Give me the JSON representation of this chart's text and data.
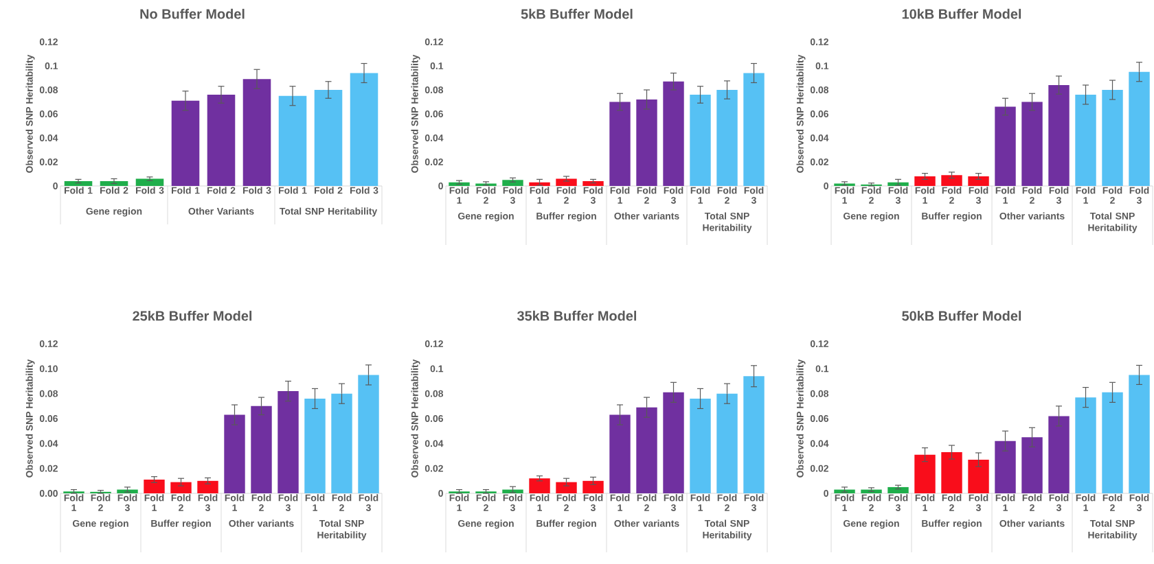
{
  "chart_data": [
    {
      "type": "bar",
      "title": "No Buffer Model",
      "ylabel": "Observed SNP Heritability",
      "categories": [
        "Fold 1",
        "Fold 2",
        "Fold 3",
        "Fold 1",
        "Fold 2",
        "Fold 3",
        "Fold 1",
        "Fold 2",
        "Fold 3"
      ],
      "ylim": [
        0,
        0.12
      ],
      "yticks": [
        0,
        0.02,
        0.04,
        0.06,
        0.08,
        0.1,
        0.12
      ],
      "series": [
        {
          "name": "Gene region",
          "color": "#1fae4b",
          "values": [
            0.004,
            0.004,
            0.006,
            null,
            null,
            null,
            null,
            null,
            null
          ],
          "errors": [
            0.0015,
            0.002,
            0.0015,
            null,
            null,
            null,
            null,
            null,
            null
          ]
        },
        {
          "name": "Other Variants",
          "color": "#7030a0",
          "values": [
            null,
            null,
            null,
            0.071,
            0.076,
            0.089,
            null,
            null,
            null
          ],
          "errors": [
            null,
            null,
            null,
            0.008,
            0.007,
            0.008,
            null,
            null,
            null
          ]
        },
        {
          "name": "Total SNP Heritability",
          "color": "#56c1f4",
          "values": [
            null,
            null,
            null,
            null,
            null,
            null,
            0.075,
            0.08,
            0.094
          ],
          "errors": [
            null,
            null,
            null,
            null,
            null,
            null,
            0.008,
            0.007,
            0.008
          ]
        }
      ]
    },
    {
      "type": "bar",
      "title": "5kB Buffer Model",
      "ylabel": "Observed SNP Heritability",
      "categories": [
        "Fold 1",
        "Fold 2",
        "Fold 3",
        "Fold 1",
        "Fold 2",
        "Fold 3",
        "Fold 1",
        "Fold 2",
        "Fold 3",
        "Fold 1",
        "Fold 2",
        "Fold 3"
      ],
      "ylim": [
        0,
        0.12
      ],
      "yticks": [
        0,
        0.02,
        0.04,
        0.06,
        0.08,
        0.1,
        0.12
      ],
      "series": [
        {
          "name": "Gene region",
          "color": "#1fae4b",
          "values": [
            0.003,
            0.002,
            0.005,
            null,
            null,
            null,
            null,
            null,
            null,
            null,
            null,
            null
          ],
          "errors": [
            0.0015,
            0.0015,
            0.0017,
            null,
            null,
            null,
            null,
            null,
            null,
            null,
            null,
            null
          ]
        },
        {
          "name": "Buffer region",
          "color": "#f90d1b",
          "values": [
            null,
            null,
            null,
            0.003,
            0.006,
            0.004,
            null,
            null,
            null,
            null,
            null,
            null
          ],
          "errors": [
            null,
            null,
            null,
            0.0025,
            0.002,
            0.0015,
            null,
            null,
            null,
            null,
            null,
            null
          ]
        },
        {
          "name": "Other variants",
          "color": "#7030a0",
          "values": [
            null,
            null,
            null,
            null,
            null,
            null,
            0.07,
            0.072,
            0.087,
            null,
            null,
            null
          ],
          "errors": [
            null,
            null,
            null,
            null,
            null,
            null,
            0.007,
            0.008,
            0.007,
            null,
            null,
            null
          ]
        },
        {
          "name": "Total SNP Heritability",
          "color": "#56c1f4",
          "values": [
            null,
            null,
            null,
            null,
            null,
            null,
            null,
            null,
            null,
            0.076,
            0.08,
            0.094
          ],
          "errors": [
            null,
            null,
            null,
            null,
            null,
            null,
            null,
            null,
            null,
            0.007,
            0.0075,
            0.008
          ]
        }
      ]
    },
    {
      "type": "bar",
      "title": "10kB Buffer Model",
      "ylabel": "Observed SNP Heritability",
      "categories": [
        "Fold 1",
        "Fold 2",
        "Fold 3",
        "Fold 1",
        "Fold 2",
        "Fold 3",
        "Fold 1",
        "Fold 2",
        "Fold 3",
        "Fold 1",
        "Fold 2",
        "Fold 3"
      ],
      "ylim": [
        0,
        0.12
      ],
      "yticks": [
        0,
        0.02,
        0.04,
        0.06,
        0.08,
        0.1,
        0.12
      ],
      "series": [
        {
          "name": "Gene region",
          "color": "#1fae4b",
          "values": [
            0.002,
            0.0012,
            0.003,
            null,
            null,
            null,
            null,
            null,
            null,
            null,
            null,
            null
          ],
          "errors": [
            0.0015,
            0.0012,
            0.0025,
            null,
            null,
            null,
            null,
            null,
            null,
            null,
            null,
            null
          ]
        },
        {
          "name": "Buffer region",
          "color": "#f90d1b",
          "values": [
            null,
            null,
            null,
            0.008,
            0.009,
            0.008,
            null,
            null,
            null,
            null,
            null,
            null
          ],
          "errors": [
            null,
            null,
            null,
            0.0025,
            0.0025,
            0.0025,
            null,
            null,
            null,
            null,
            null,
            null
          ]
        },
        {
          "name": "Other variants",
          "color": "#7030a0",
          "values": [
            null,
            null,
            null,
            null,
            null,
            null,
            0.066,
            0.07,
            0.084,
            null,
            null,
            null
          ],
          "errors": [
            null,
            null,
            null,
            null,
            null,
            null,
            0.007,
            0.007,
            0.0075,
            null,
            null,
            null
          ]
        },
        {
          "name": "Total SNP Heritability",
          "color": "#56c1f4",
          "values": [
            null,
            null,
            null,
            null,
            null,
            null,
            null,
            null,
            null,
            0.076,
            0.08,
            0.095
          ],
          "errors": [
            null,
            null,
            null,
            null,
            null,
            null,
            null,
            null,
            null,
            0.008,
            0.008,
            0.008
          ]
        }
      ]
    },
    {
      "type": "bar",
      "title": "25kB Buffer Model",
      "ylabel": "Observed SNP Heritability",
      "categories": [
        "Fold 1",
        "Fold 2",
        "Fold 3",
        "Fold 1",
        "Fold 2",
        "Fold 3",
        "Fold 1",
        "Fold 2",
        "Fold 3",
        "Fold 1",
        "Fold 2",
        "Fold 3"
      ],
      "ylim": [
        0,
        0.12
      ],
      "yticks": [
        {
          "value": 0,
          "label": "0.00"
        },
        {
          "value": 0.02,
          "label": "0.02"
        },
        {
          "value": 0.04,
          "label": "0.04"
        },
        {
          "value": 0.06,
          "label": "0.06"
        },
        {
          "value": 0.08,
          "label": "0.08"
        },
        {
          "value": 0.1,
          "label": "0.10"
        },
        {
          "value": 0.12,
          "label": "0.12"
        }
      ],
      "series": [
        {
          "name": "Gene region",
          "color": "#1fae4b",
          "values": [
            0.0015,
            0.0012,
            0.003,
            null,
            null,
            null,
            null,
            null,
            null,
            null,
            null,
            null
          ],
          "errors": [
            0.0015,
            0.0012,
            0.002,
            null,
            null,
            null,
            null,
            null,
            null,
            null,
            null,
            null
          ]
        },
        {
          "name": "Buffer region",
          "color": "#f90d1b",
          "values": [
            null,
            null,
            null,
            0.011,
            0.009,
            0.01,
            null,
            null,
            null,
            null,
            null,
            null
          ],
          "errors": [
            null,
            null,
            null,
            0.0024,
            0.003,
            0.0024,
            null,
            null,
            null,
            null,
            null,
            null
          ]
        },
        {
          "name": "Other variants",
          "color": "#7030a0",
          "values": [
            null,
            null,
            null,
            null,
            null,
            null,
            0.063,
            0.07,
            0.082,
            null,
            null,
            null
          ],
          "errors": [
            null,
            null,
            null,
            null,
            null,
            null,
            0.008,
            0.007,
            0.008,
            null,
            null,
            null
          ]
        },
        {
          "name": "Total SNP Heritability",
          "color": "#56c1f4",
          "values": [
            null,
            null,
            null,
            null,
            null,
            null,
            null,
            null,
            null,
            0.076,
            0.08,
            0.095
          ],
          "errors": [
            null,
            null,
            null,
            null,
            null,
            null,
            null,
            null,
            null,
            0.008,
            0.008,
            0.008
          ]
        }
      ]
    },
    {
      "type": "bar",
      "title": "35kB Buffer Model",
      "ylabel": "Observed SNP Heritability",
      "categories": [
        "Fold 1",
        "Fold 2",
        "Fold 3",
        "Fold 1",
        "Fold 2",
        "Fold 3",
        "Fold 1",
        "Fold 2",
        "Fold 3",
        "Fold 1",
        "Fold 2",
        "Fold 3"
      ],
      "ylim": [
        0,
        0.12
      ],
      "yticks": [
        0,
        0.02,
        0.04,
        0.06,
        0.08,
        0.1,
        0.12
      ],
      "series": [
        {
          "name": "Gene region",
          "color": "#1fae4b",
          "values": [
            0.0015,
            0.0015,
            0.003,
            null,
            null,
            null,
            null,
            null,
            null,
            null,
            null,
            null
          ],
          "errors": [
            0.0015,
            0.0015,
            0.0024,
            null,
            null,
            null,
            null,
            null,
            null,
            null,
            null,
            null
          ]
        },
        {
          "name": "Buffer region",
          "color": "#f90d1b",
          "values": [
            null,
            null,
            null,
            0.012,
            0.009,
            0.01,
            null,
            null,
            null,
            null,
            null,
            null
          ],
          "errors": [
            null,
            null,
            null,
            0.002,
            0.003,
            0.003,
            null,
            null,
            null,
            null,
            null,
            null
          ]
        },
        {
          "name": "Other variants",
          "color": "#7030a0",
          "values": [
            null,
            null,
            null,
            null,
            null,
            null,
            0.063,
            0.069,
            0.081,
            null,
            null,
            null
          ],
          "errors": [
            null,
            null,
            null,
            null,
            null,
            null,
            0.008,
            0.008,
            0.008,
            null,
            null,
            null
          ]
        },
        {
          "name": "Total SNP Heritability",
          "color": "#56c1f4",
          "values": [
            null,
            null,
            null,
            null,
            null,
            null,
            null,
            null,
            null,
            0.076,
            0.08,
            0.094
          ],
          "errors": [
            null,
            null,
            null,
            null,
            null,
            null,
            null,
            null,
            null,
            0.008,
            0.008,
            0.0085
          ]
        }
      ]
    },
    {
      "type": "bar",
      "title": "50kB Buffer Model",
      "ylabel": "Observed SNP Heritability",
      "categories": [
        "Fold 1",
        "Fold 2",
        "Fold 3",
        "Fold 1",
        "Fold 2",
        "Fold 3",
        "Fold 1",
        "Fold 2",
        "Fold 3",
        "Fold 1",
        "Fold 2",
        "Fold 3"
      ],
      "ylim": [
        0,
        0.12
      ],
      "yticks": [
        0,
        0.02,
        0.04,
        0.06,
        0.08,
        0.1,
        0.12
      ],
      "series": [
        {
          "name": "Gene region",
          "color": "#1fae4b",
          "values": [
            0.003,
            0.003,
            0.005,
            null,
            null,
            null,
            null,
            null,
            null,
            null,
            null,
            null
          ],
          "errors": [
            0.002,
            0.0015,
            0.0015,
            null,
            null,
            null,
            null,
            null,
            null,
            null,
            null,
            null
          ]
        },
        {
          "name": "Buffer region",
          "color": "#f90d1b",
          "values": [
            null,
            null,
            null,
            0.031,
            0.033,
            0.027,
            null,
            null,
            null,
            null,
            null,
            null
          ],
          "errors": [
            null,
            null,
            null,
            0.0055,
            0.0055,
            0.0055,
            null,
            null,
            null,
            null,
            null,
            null
          ]
        },
        {
          "name": "Other variants",
          "color": "#7030a0",
          "values": [
            null,
            null,
            null,
            null,
            null,
            null,
            0.042,
            0.045,
            0.062,
            null,
            null,
            null
          ],
          "errors": [
            null,
            null,
            null,
            null,
            null,
            null,
            0.008,
            0.0077,
            0.008,
            null,
            null,
            null
          ]
        },
        {
          "name": "Total SNP Heritability",
          "color": "#56c1f4",
          "values": [
            null,
            null,
            null,
            null,
            null,
            null,
            null,
            null,
            null,
            0.077,
            0.081,
            0.095
          ],
          "errors": [
            null,
            null,
            null,
            null,
            null,
            null,
            null,
            null,
            null,
            0.008,
            0.008,
            0.0077
          ]
        }
      ]
    }
  ]
}
